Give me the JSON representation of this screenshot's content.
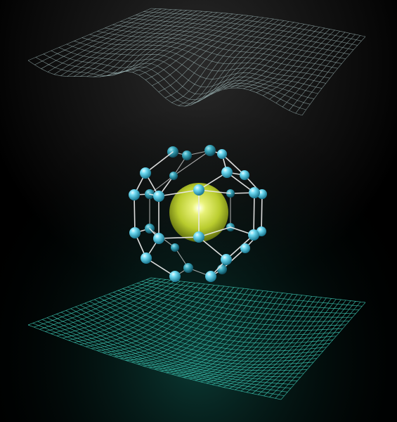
{
  "image": {
    "subject": "fullerene-cage-with-endohedral-atom",
    "colors": {
      "background_top": "#1a1a1a",
      "background_bottom": "#062a26",
      "upper_mesh": "#9fb8b8",
      "lower_mesh": "#3ec9b5",
      "cage_atom": "#5ad4ee",
      "cage_atom_highlight": "#d8f8ff",
      "cage_atom_dark": "#1f7f97",
      "bond": "#e8e8e8",
      "central_sphere": "#cde044",
      "central_sphere_dark": "#6d7d10",
      "central_glow": "#fbffb0"
    },
    "objects": [
      {
        "name": "upper-wireframe-surface",
        "description_key": "wavy-energy-surface"
      },
      {
        "name": "cage-molecule",
        "description_key": "fullerene-cage"
      },
      {
        "name": "central-atom-sphere",
        "description_key": "encapsulated-atom"
      },
      {
        "name": "lower-wireframe-surface",
        "description_key": "parabolic-well-surface"
      }
    ]
  }
}
